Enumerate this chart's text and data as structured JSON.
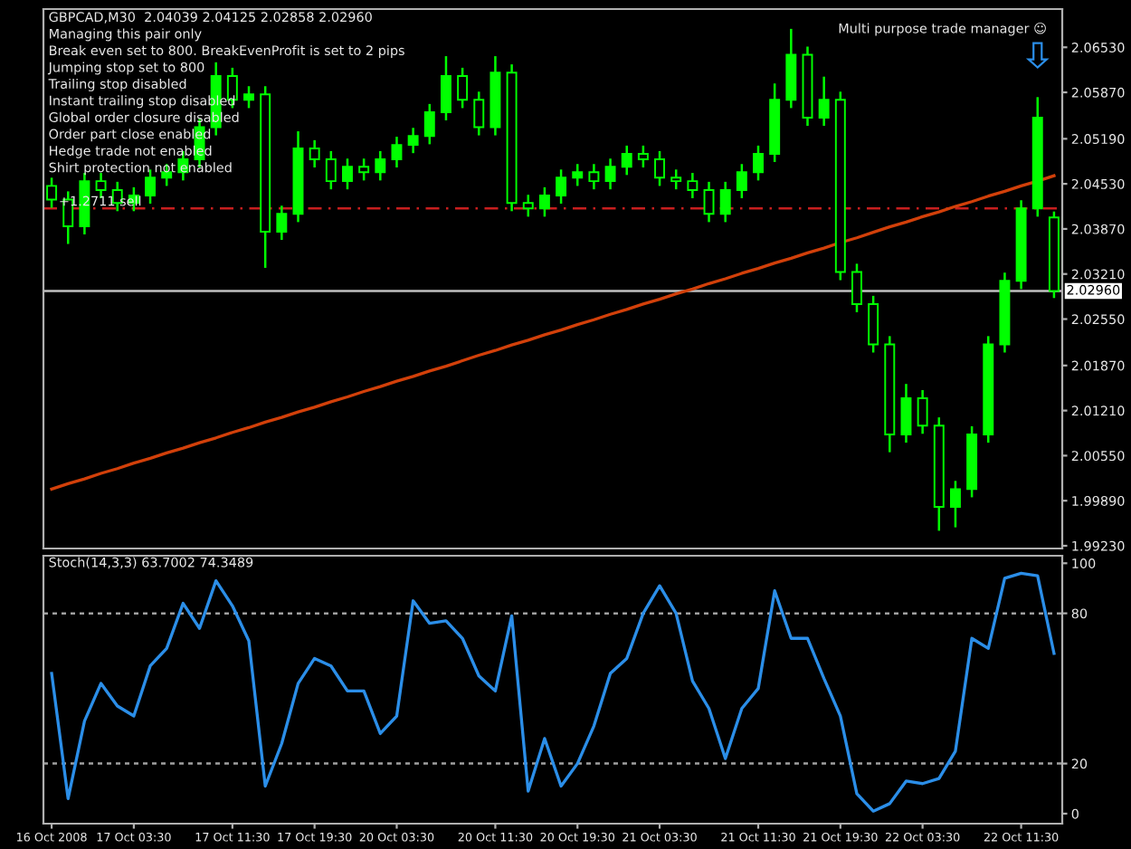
{
  "chart_data": [
    {
      "type": "candlestick",
      "title": "GBPCAD,M30  2.04039 2.04125 2.02858 2.02960",
      "subtitle": "Multi purpose trade manager ☺",
      "annotations": [
        "Managing this pair only",
        "Break even set to 800. BreakEvenProfit is set to 2 pips",
        "Jumping stop set to 800",
        "Trailing stop disabled",
        "Instant trailing stop disabled",
        "Global order closure disabled",
        "Order part close enabled",
        "Hedge trade not enabled",
        "Shirt protection not enabled"
      ],
      "color": "#00ff00",
      "categories": [
        null,
        null,
        null,
        null,
        null,
        null,
        null,
        null,
        null,
        null,
        null,
        null,
        null,
        null,
        null,
        null,
        null,
        null,
        null,
        null,
        null,
        null,
        null,
        null,
        null,
        null,
        null,
        null,
        null,
        null,
        null,
        null,
        null,
        null,
        null,
        null,
        null,
        null,
        null,
        null,
        null,
        null,
        null,
        null,
        null,
        null,
        null,
        null,
        null,
        null,
        null,
        null,
        null,
        null,
        null,
        null,
        null,
        null,
        null,
        null,
        null,
        null
      ],
      "ohlc": [
        [
          2.045,
          2.0462,
          2.0418,
          2.043
        ],
        [
          2.043,
          2.0442,
          2.0365,
          2.0391
        ],
        [
          2.0391,
          2.0469,
          2.0379,
          2.0457
        ],
        [
          2.0457,
          2.0469,
          2.0432,
          2.0444
        ],
        [
          2.0444,
          2.0456,
          2.0413,
          2.0425
        ],
        [
          2.0425,
          2.0448,
          2.0413,
          2.0436
        ],
        [
          2.0436,
          2.0474,
          2.0424,
          2.0462
        ],
        [
          2.0462,
          2.0482,
          2.045,
          2.047
        ],
        [
          2.047,
          2.0501,
          2.0458,
          2.0489
        ],
        [
          2.0489,
          2.0548,
          2.0477,
          2.0536
        ],
        [
          2.0536,
          2.0631,
          2.0524,
          2.0611
        ],
        [
          2.0611,
          2.0623,
          2.0564,
          2.0576
        ],
        [
          2.0576,
          2.0596,
          2.0564,
          2.0584
        ],
        [
          2.0584,
          2.0596,
          2.033,
          2.0383
        ],
        [
          2.0383,
          2.0421,
          2.0371,
          2.0409
        ],
        [
          2.0409,
          2.053,
          2.0397,
          2.0505
        ],
        [
          2.0505,
          2.0517,
          2.0477,
          2.0489
        ],
        [
          2.0489,
          2.0501,
          2.0445,
          2.0457
        ],
        [
          2.0457,
          2.049,
          2.0445,
          2.0478
        ],
        [
          2.0478,
          2.049,
          2.0458,
          2.047
        ],
        [
          2.047,
          2.0501,
          2.0458,
          2.0489
        ],
        [
          2.0489,
          2.0522,
          2.0477,
          2.051
        ],
        [
          2.051,
          2.0535,
          2.0498,
          2.0523
        ],
        [
          2.0523,
          2.057,
          2.0511,
          2.0558
        ],
        [
          2.0558,
          2.064,
          2.0546,
          2.0611
        ],
        [
          2.0611,
          2.0623,
          2.0564,
          2.0576
        ],
        [
          2.0576,
          2.0588,
          2.0524,
          2.0536
        ],
        [
          2.0536,
          2.064,
          2.0524,
          2.0616
        ],
        [
          2.0616,
          2.0628,
          2.0413,
          2.0425
        ],
        [
          2.0425,
          2.0437,
          2.0405,
          2.0417
        ],
        [
          2.0417,
          2.0448,
          2.0405,
          2.0436
        ],
        [
          2.0436,
          2.0474,
          2.0424,
          2.0462
        ],
        [
          2.0462,
          2.0482,
          2.045,
          2.047
        ],
        [
          2.047,
          2.0482,
          2.0445,
          2.0457
        ],
        [
          2.0457,
          2.049,
          2.0445,
          2.0478
        ],
        [
          2.0478,
          2.0509,
          2.0466,
          2.0497
        ],
        [
          2.0497,
          2.0509,
          2.0477,
          2.0489
        ],
        [
          2.0489,
          2.0501,
          2.045,
          2.0462
        ],
        [
          2.0462,
          2.0474,
          2.0445,
          2.0457
        ],
        [
          2.0457,
          2.0469,
          2.0432,
          2.0444
        ],
        [
          2.0444,
          2.0456,
          2.0397,
          2.0409
        ],
        [
          2.0409,
          2.0456,
          2.0397,
          2.0444
        ],
        [
          2.0444,
          2.0482,
          2.0432,
          2.047
        ],
        [
          2.047,
          2.0509,
          2.0458,
          2.0497
        ],
        [
          2.0497,
          2.06,
          2.0485,
          2.0576
        ],
        [
          2.0576,
          2.068,
          2.0564,
          2.0642
        ],
        [
          2.0642,
          2.0654,
          2.0538,
          2.055
        ],
        [
          2.055,
          2.061,
          2.0538,
          2.0576
        ],
        [
          2.0576,
          2.0588,
          2.0312,
          2.0324
        ],
        [
          2.0324,
          2.0336,
          2.0265,
          2.0277
        ],
        [
          2.0277,
          2.0289,
          2.0206,
          2.0218
        ],
        [
          2.0218,
          2.023,
          2.006,
          2.0086
        ],
        [
          2.0086,
          2.016,
          2.0074,
          2.0139
        ],
        [
          2.0139,
          2.0151,
          2.0087,
          2.0099
        ],
        [
          2.0099,
          2.0111,
          1.9945,
          1.998
        ],
        [
          1.998,
          2.0018,
          1.995,
          2.0006
        ],
        [
          2.0006,
          2.0098,
          1.9994,
          2.0086
        ],
        [
          2.0086,
          2.023,
          2.0074,
          2.0218
        ],
        [
          2.0218,
          2.0323,
          2.0206,
          2.0311
        ],
        [
          2.0311,
          2.0429,
          2.0299,
          2.0417
        ],
        [
          2.0417,
          2.058,
          2.0405,
          2.055
        ],
        [
          2.04039,
          2.04125,
          2.02858,
          2.0296
        ]
      ],
      "series": [
        {
          "type": "line",
          "color": "#d2400a",
          "values": [
            2.0006,
            2.0014,
            2.0021,
            2.0029,
            2.0036,
            2.0044,
            2.0051,
            2.0059,
            2.0066,
            2.0074,
            2.0081,
            2.0089,
            2.0096,
            2.0104,
            2.0111,
            2.0119,
            2.0126,
            2.0134,
            2.0141,
            2.0149,
            2.0156,
            2.0164,
            2.0171,
            2.0179,
            2.0186,
            2.0194,
            2.0202,
            2.0209,
            2.0217,
            2.0224,
            2.0232,
            2.0239,
            2.0247,
            2.0254,
            2.0262,
            2.0269,
            2.0277,
            2.0284,
            2.0292,
            2.0299,
            2.0307,
            2.0314,
            2.0322,
            2.0329,
            2.0337,
            2.0344,
            2.0352,
            2.0359,
            2.0367,
            2.0374,
            2.0382,
            2.039,
            2.0397,
            2.0405,
            2.0412,
            2.042,
            2.0427,
            2.0435,
            2.0442,
            2.045,
            2.0457,
            2.0465
          ]
        }
      ],
      "ylim": [
        1.9919,
        2.0709
      ],
      "yticks": [
        {
          "value": 2.0653,
          "label": "2.06530"
        },
        {
          "value": 2.0587,
          "label": "2.05870"
        },
        {
          "value": 2.0519,
          "label": "2.05190"
        },
        {
          "value": 2.0453,
          "label": "2.04530"
        },
        {
          "value": 2.0387,
          "label": "2.03870"
        },
        {
          "value": 2.0321,
          "label": "2.03210"
        },
        {
          "value": 2.0255,
          "label": "2.02550"
        },
        {
          "value": 2.0187,
          "label": "2.01870"
        },
        {
          "value": 2.0121,
          "label": "2.01210"
        },
        {
          "value": 2.0055,
          "label": "2.00550"
        },
        {
          "value": 1.9989,
          "label": "1.99890"
        },
        {
          "value": 1.9923,
          "label": "1.99230"
        }
      ],
      "ref_lines": [
        {
          "axis": "y",
          "value": 2.0296,
          "label": "2.02960",
          "color": "#c0c0c0",
          "line_style": "solid"
        },
        {
          "axis": "y",
          "value": 2.0417,
          "label": "+1.2711 sell",
          "color": "#c81e1e",
          "line_style": "dashed"
        }
      ],
      "tick_labels": "y"
    },
    {
      "type": "line",
      "title": "Stoch(14,3,3) 63.7002 74.3489",
      "categories": [
        "16 Oct 2008",
        null,
        null,
        null,
        null,
        "17 Oct 03:30",
        null,
        null,
        null,
        null,
        null,
        "17 Oct 11:30",
        null,
        null,
        null,
        null,
        "17 Oct 19:30",
        null,
        null,
        null,
        null,
        "20 Oct 03:30",
        null,
        null,
        null,
        null,
        null,
        "20 Oct 11:30",
        null,
        null,
        null,
        null,
        "20 Oct 19:30",
        null,
        null,
        null,
        null,
        "21 Oct 03:30",
        null,
        null,
        null,
        null,
        null,
        "21 Oct 11:30",
        null,
        null,
        null,
        null,
        "21 Oct 19:30",
        null,
        null,
        null,
        null,
        "22 Oct 03:30",
        null,
        null,
        null,
        null,
        null,
        "22 Oct 11:30",
        null,
        null
      ],
      "series": [
        {
          "color": "#2b8ee8",
          "values": [
            56,
            6,
            37,
            52,
            43,
            39,
            59,
            66,
            84,
            74,
            93,
            83,
            69,
            11,
            28,
            52,
            62,
            59,
            49,
            49,
            32,
            39,
            85,
            76,
            77,
            70,
            55,
            49,
            79,
            9,
            30,
            11,
            20,
            35,
            56,
            62,
            80,
            91,
            80,
            53,
            42,
            22,
            42,
            50,
            89,
            70,
            70,
            54,
            39,
            8,
            1,
            4,
            13,
            12,
            14,
            25,
            70,
            66,
            94,
            96,
            95,
            64
          ]
        }
      ],
      "ylim": [
        -4,
        103
      ],
      "yticks": [
        0,
        20,
        80,
        100
      ],
      "ref_lines": [
        {
          "axis": "y",
          "value": 80,
          "color": "#a0a0a0",
          "line_style": "dotted"
        },
        {
          "axis": "y",
          "value": 20,
          "color": "#a0a0a0",
          "line_style": "dotted"
        }
      ]
    }
  ]
}
